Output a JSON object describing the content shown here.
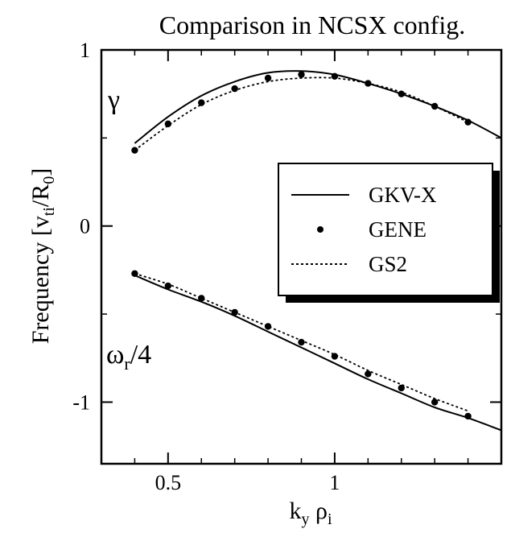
{
  "chart_data": {
    "type": "line",
    "title": "Comparison in NCSX config.",
    "xlabel": {
      "main": "k",
      "sub1": "y",
      "mid": " ρ",
      "sub2": "i"
    },
    "ylabel": {
      "main": "Frequency  [v",
      "sub1": "ti",
      "mid": "/R",
      "sub2": "0",
      "end": "]"
    },
    "xlim": [
      0.3,
      1.5
    ],
    "ylim": [
      -1.35,
      1.0
    ],
    "x_ticks": [
      {
        "value": 0.5,
        "label": "0.5"
      },
      {
        "value": 1.0,
        "label": "1"
      }
    ],
    "y_ticks": [
      {
        "value": 1,
        "label": "1"
      },
      {
        "value": 0,
        "label": "0"
      },
      {
        "value": -1,
        "label": "-1"
      }
    ],
    "x_minor_ticks": [
      0.4,
      0.6,
      0.7,
      0.8,
      0.9,
      1.1,
      1.2,
      1.3,
      1.4
    ],
    "y_minor_ticks": [
      0.5,
      -0.5
    ],
    "grid": false,
    "legend_position": "right-middle",
    "annotations": [
      {
        "id": "gamma",
        "text": "γ",
        "x": 0.34,
        "y": 0.7
      },
      {
        "id": "omega",
        "text": "ω",
        "sub": "r",
        "tail": "/4",
        "x": 0.34,
        "y": -0.77
      }
    ],
    "series": [
      {
        "name": "GKV-X",
        "style": "solid",
        "groups": [
          {
            "x": [
              0.4,
              0.5,
              0.6,
              0.7,
              0.8,
              0.9,
              1.0,
              1.1,
              1.2,
              1.3,
              1.4,
              1.5
            ],
            "y": [
              0.47,
              0.62,
              0.74,
              0.82,
              0.87,
              0.88,
              0.86,
              0.81,
              0.75,
              0.68,
              0.6,
              0.5
            ]
          },
          {
            "x": [
              0.4,
              0.5,
              0.6,
              0.7,
              0.8,
              0.9,
              1.0,
              1.1,
              1.2,
              1.3,
              1.4,
              1.5
            ],
            "y": [
              -0.28,
              -0.36,
              -0.43,
              -0.51,
              -0.6,
              -0.69,
              -0.78,
              -0.87,
              -0.95,
              -1.03,
              -1.09,
              -1.16
            ]
          }
        ]
      },
      {
        "name": "GENE",
        "style": "dots",
        "groups": [
          {
            "x": [
              0.4,
              0.5,
              0.6,
              0.7,
              0.8,
              0.9,
              1.0,
              1.1,
              1.2,
              1.3,
              1.4
            ],
            "y": [
              0.43,
              0.58,
              0.7,
              0.78,
              0.84,
              0.86,
              0.85,
              0.81,
              0.75,
              0.68,
              0.59
            ]
          },
          {
            "x": [
              0.4,
              0.5,
              0.6,
              0.7,
              0.8,
              0.9,
              1.0,
              1.1,
              1.2,
              1.3,
              1.4
            ],
            "y": [
              -0.27,
              -0.34,
              -0.41,
              -0.49,
              -0.57,
              -0.66,
              -0.74,
              -0.84,
              -0.92,
              -1.0,
              -1.08
            ]
          }
        ]
      },
      {
        "name": "GS2",
        "style": "dashed",
        "groups": [
          {
            "x": [
              0.4,
              0.5,
              0.6,
              0.7,
              0.8,
              0.9,
              1.0,
              1.1,
              1.2,
              1.3,
              1.4
            ],
            "y": [
              0.43,
              0.57,
              0.69,
              0.77,
              0.82,
              0.84,
              0.84,
              0.81,
              0.76,
              0.68,
              0.59
            ]
          },
          {
            "x": [
              0.4,
              0.5,
              0.6,
              0.7,
              0.8,
              0.9,
              1.0,
              1.1,
              1.2,
              1.3,
              1.4
            ],
            "y": [
              -0.27,
              -0.33,
              -0.41,
              -0.49,
              -0.57,
              -0.65,
              -0.73,
              -0.82,
              -0.9,
              -0.98,
              -1.05
            ]
          }
        ]
      }
    ]
  }
}
